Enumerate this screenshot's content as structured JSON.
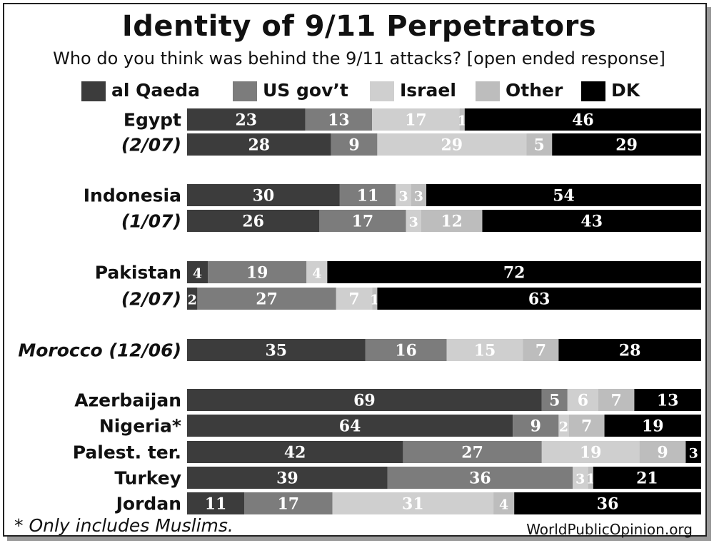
{
  "header": {
    "title": "Identity of 9/11 Perpetrators",
    "subtitle": "Who do you think was behind the 9/11 attacks? [open ended response]"
  },
  "legend": [
    {
      "label": "al Qaeda",
      "color": "#3c3c3c"
    },
    {
      "label": "US gov’t",
      "color": "#7c7c7c"
    },
    {
      "label": "Israel",
      "color": "#cfcfcf"
    },
    {
      "label": "Other",
      "color": "#bdbdbd"
    },
    {
      "label": "DK",
      "color": "#000000"
    }
  ],
  "chart_data": {
    "type": "bar",
    "orientation": "horizontal",
    "stacked": true,
    "title": "Identity of 9/11 Perpetrators",
    "subtitle": "Who do you think was behind the 9/11 attacks? [open ended response]",
    "series_names": [
      "al Qaeda",
      "US gov’t",
      "Israel",
      "Other",
      "DK"
    ],
    "rows": [
      {
        "label": "Egypt",
        "label_style": "bold",
        "values": [
          23,
          13,
          17,
          1,
          46
        ]
      },
      {
        "label": "(2/07)",
        "label_style": "bold-italic",
        "values": [
          28,
          9,
          29,
          5,
          29
        ]
      },
      {
        "label": "Indonesia",
        "label_style": "bold",
        "values": [
          30,
          11,
          3,
          3,
          54
        ]
      },
      {
        "label": "(1/07)",
        "label_style": "bold-italic",
        "values": [
          26,
          17,
          3,
          12,
          43
        ]
      },
      {
        "label": "Pakistan",
        "label_style": "bold",
        "values": [
          4,
          19,
          4,
          0,
          72
        ]
      },
      {
        "label": "(2/07)",
        "label_style": "bold-italic",
        "values": [
          2,
          27,
          7,
          1,
          63
        ]
      },
      {
        "label": "Morocco (12/06)",
        "label_style": "bold-italic",
        "values": [
          35,
          16,
          15,
          7,
          28
        ]
      },
      {
        "label": "Azerbaijan",
        "label_style": "bold",
        "values": [
          69,
          5,
          6,
          7,
          13
        ]
      },
      {
        "label": "Nigeria*",
        "label_style": "bold",
        "values": [
          64,
          9,
          2,
          7,
          19
        ]
      },
      {
        "label": "Palest. ter.",
        "label_style": "bold",
        "values": [
          42,
          27,
          19,
          9,
          3
        ]
      },
      {
        "label": "Turkey",
        "label_style": "bold",
        "values": [
          39,
          36,
          3,
          1,
          21
        ]
      },
      {
        "label": "Jordan",
        "label_style": "bold",
        "values": [
          11,
          17,
          31,
          4,
          36
        ]
      }
    ],
    "xlim": [
      0,
      100
    ],
    "grid": false,
    "legend_position": "top"
  },
  "footer": {
    "footnote": "* Only includes Muslims.",
    "source": "WorldPublicOpinion.org"
  }
}
